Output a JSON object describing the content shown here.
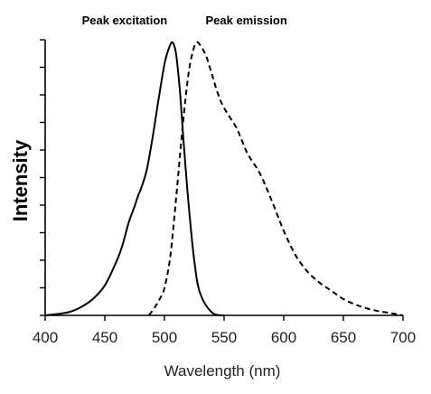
{
  "chart_data": {
    "type": "line",
    "xlabel": "Wavelength (nm)",
    "ylabel": "Intensity",
    "xlim": [
      400,
      700
    ],
    "ylim": [
      0,
      1
    ],
    "x_ticks": [
      400,
      450,
      500,
      550,
      600,
      650,
      700
    ],
    "y_tick_count": 11,
    "annotations": [
      {
        "text": "Peak excitation",
        "x": 506
      },
      {
        "text": "Peak emission",
        "x": 527
      }
    ],
    "series": [
      {
        "id": "excitation",
        "style": "solid",
        "color": "#000000",
        "x": [
          400,
          410,
          420,
          430,
          440,
          450,
          460,
          465,
          470,
          475,
          478,
          480,
          485,
          490,
          495,
          500,
          503,
          506,
          508,
          510,
          513,
          516,
          520,
          525,
          530,
          540,
          550
        ],
        "y": [
          0.0,
          0.005,
          0.012,
          0.03,
          0.06,
          0.11,
          0.2,
          0.26,
          0.34,
          0.4,
          0.44,
          0.46,
          0.53,
          0.65,
          0.79,
          0.92,
          0.97,
          1.0,
          0.99,
          0.95,
          0.82,
          0.64,
          0.42,
          0.2,
          0.08,
          0.01,
          0.0
        ]
      },
      {
        "id": "emission",
        "style": "dashed",
        "color": "#000000",
        "x": [
          487,
          492,
          496,
          500,
          505,
          510,
          515,
          520,
          524,
          527,
          530,
          535,
          540,
          545,
          550,
          560,
          565,
          570,
          580,
          590,
          600,
          610,
          620,
          630,
          640,
          650,
          660,
          670,
          680,
          690,
          700
        ],
        "y": [
          0.0,
          0.03,
          0.06,
          0.1,
          0.22,
          0.44,
          0.68,
          0.88,
          0.97,
          1.0,
          0.99,
          0.95,
          0.88,
          0.81,
          0.76,
          0.69,
          0.64,
          0.59,
          0.52,
          0.42,
          0.31,
          0.22,
          0.16,
          0.12,
          0.09,
          0.06,
          0.04,
          0.025,
          0.015,
          0.008,
          0.0
        ]
      }
    ]
  }
}
